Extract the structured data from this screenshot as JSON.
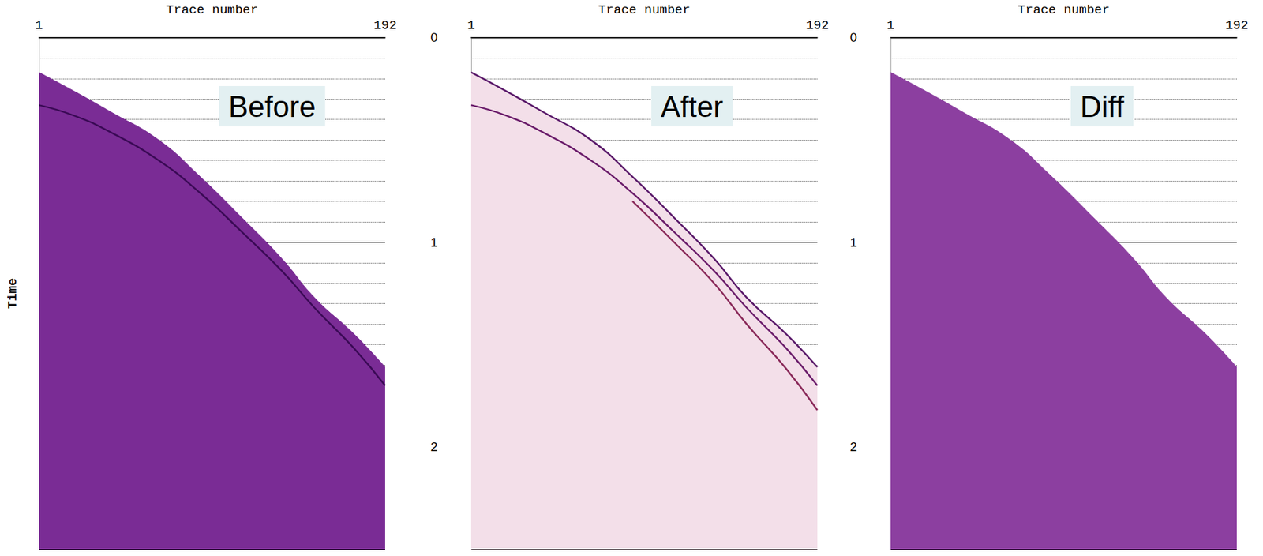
{
  "chart_data": [
    {
      "type": "line",
      "title": "Before",
      "x_label": "Trace number",
      "y_label": "Time",
      "x": [
        1,
        20,
        40,
        67,
        90,
        113,
        135,
        153,
        175,
        192
      ],
      "xlim": [
        1,
        192
      ],
      "xticks": [
        1,
        192
      ],
      "ylim": [
        0,
        2.5
      ],
      "yticks": [
        0,
        1,
        2
      ],
      "grid": true,
      "tick_labels": "x",
      "series": [
        {
          "type": "area",
          "color": "#7a2c95",
          "values": [
            0.17,
            0.26,
            0.36,
            0.5,
            0.68,
            0.88,
            1.08,
            1.27,
            1.45,
            1.61
          ]
        },
        {
          "type": "line",
          "color": "#3a0a55",
          "values": [
            0.33,
            0.38,
            0.46,
            0.6,
            0.76,
            0.95,
            1.14,
            1.32,
            1.52,
            1.7
          ]
        }
      ]
    },
    {
      "type": "line",
      "title": "After",
      "x_label": "Trace number",
      "x": [
        1,
        20,
        40,
        67,
        90,
        113,
        135,
        153,
        175,
        192
      ],
      "xlim": [
        1,
        192
      ],
      "xticks": [
        1,
        192
      ],
      "ylim": [
        0,
        2.5
      ],
      "yticks": [
        0,
        1,
        2
      ],
      "grid": true,
      "series": [
        {
          "type": "area",
          "color": "#f3dfe9",
          "values": [
            0.17,
            0.26,
            0.36,
            0.5,
            0.68,
            0.88,
            1.08,
            1.27,
            1.45,
            1.61
          ]
        },
        {
          "type": "line",
          "color": "#5a1a6a",
          "values": [
            0.17,
            0.26,
            0.36,
            0.5,
            0.68,
            0.88,
            1.08,
            1.27,
            1.45,
            1.61
          ]
        },
        {
          "type": "line",
          "color": "#6b1d6b",
          "values": [
            0.33,
            0.38,
            0.46,
            0.6,
            0.76,
            0.95,
            1.14,
            1.32,
            1.52,
            1.7
          ]
        },
        {
          "type": "line",
          "color": "#8a2a5a",
          "values": [
            null,
            null,
            null,
            null,
            0.8,
            1.0,
            1.2,
            1.4,
            1.62,
            1.82
          ]
        }
      ]
    },
    {
      "type": "line",
      "title": "Diff",
      "x_label": "Trace number",
      "x": [
        1,
        20,
        40,
        67,
        90,
        113,
        135,
        153,
        175,
        192
      ],
      "xlim": [
        1,
        192
      ],
      "xticks": [
        1,
        192
      ],
      "ylim": [
        0,
        2.5
      ],
      "yticks": [
        0,
        1,
        2
      ],
      "grid": true,
      "series": [
        {
          "type": "area",
          "color": "#8c3fa0",
          "values": [
            0.17,
            0.26,
            0.36,
            0.5,
            0.68,
            0.88,
            1.08,
            1.27,
            1.45,
            1.61
          ]
        }
      ]
    }
  ]
}
